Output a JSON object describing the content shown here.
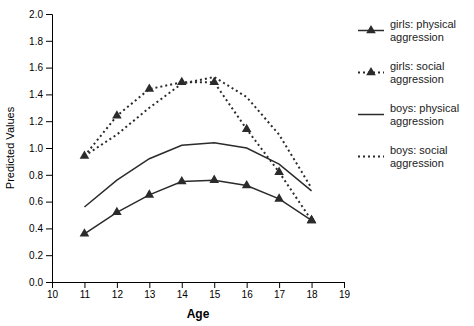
{
  "chart_data": {
    "type": "line",
    "xlabel": "Age",
    "ylabel": "Predicted Values",
    "x": [
      11,
      12,
      13,
      14,
      15,
      16,
      17,
      18
    ],
    "xlim": [
      10,
      19
    ],
    "xticks": [
      10,
      11,
      12,
      13,
      14,
      15,
      16,
      17,
      18,
      19
    ],
    "ylim": [
      0,
      2
    ],
    "yticks": [
      {
        "value": 0,
        "label": "0.0"
      },
      0.2,
      0.4,
      0.6,
      0.8,
      {
        "value": 1.0,
        "label": "1.0"
      },
      1.2,
      1.4,
      1.6,
      1.8,
      {
        "value": 2.0,
        "label": "2.0"
      }
    ],
    "grid": false,
    "legend": "right",
    "series": [
      {
        "name": "girls: physical\naggression",
        "color": "#2b2b2b",
        "marker": "triangle",
        "line_style": "solid",
        "values": [
          0.36,
          0.52,
          0.65,
          0.75,
          0.76,
          0.72,
          0.62,
          0.46
        ]
      },
      {
        "name": "girls: social\naggression",
        "color": "#2b2b2b",
        "marker": "triangle",
        "line_style": "dotted",
        "values": [
          0.94,
          1.24,
          1.44,
          1.49,
          1.49,
          1.14,
          0.82,
          0.46
        ]
      },
      {
        "name": "boys: physical\naggression",
        "color": "#2b2b2b",
        "marker": "none",
        "line_style": "solid",
        "values": [
          0.56,
          0.76,
          0.92,
          1.02,
          1.04,
          1.0,
          0.88,
          0.68
        ]
      },
      {
        "name": "boys: social\naggression",
        "color": "#2b2b2b",
        "marker": "none",
        "line_style": "dotted",
        "values": [
          0.94,
          1.1,
          1.3,
          1.48,
          1.53,
          1.38,
          1.1,
          0.7
        ]
      }
    ]
  }
}
